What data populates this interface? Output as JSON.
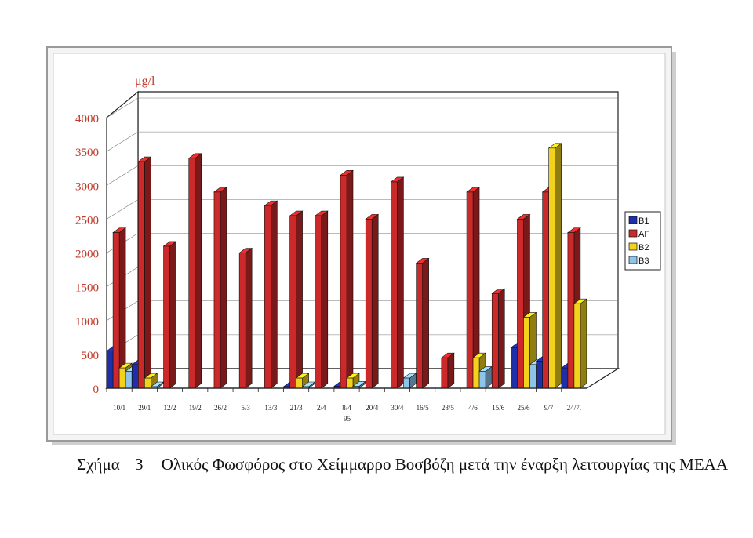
{
  "chart_data": {
    "type": "bar",
    "unit_label": "μg/l",
    "ylim": [
      0,
      4000
    ],
    "y_ticks": [
      "0",
      "500",
      "1000",
      "1500",
      "2000",
      "2500",
      "3000",
      "3500",
      "4000"
    ],
    "categories": [
      "10/1",
      "29/1",
      "12/2",
      "19/2",
      "26/2",
      "5/3",
      "13/3",
      "21/3",
      "2/4",
      "8/4",
      "20/4",
      "30/4",
      "16/5",
      "28/5",
      "4/6",
      "15/6",
      "25/6",
      "9/7",
      "24/7."
    ],
    "year_label": "95",
    "grid": true,
    "legend_position": "right",
    "series": [
      {
        "name": "B1",
        "color": "#1f2fa8",
        "values": [
          550,
          350,
          null,
          null,
          null,
          null,
          null,
          20,
          null,
          30,
          null,
          null,
          null,
          null,
          null,
          null,
          600,
          400,
          300
        ]
      },
      {
        "name": "ΑΓ",
        "color": "#cc2a2a",
        "values": [
          2300,
          3350,
          2100,
          3400,
          2900,
          2000,
          2700,
          2550,
          2550,
          3150,
          2500,
          3050,
          1850,
          450,
          2900,
          1400,
          2500,
          2900,
          2300
        ]
      },
      {
        "name": "B2",
        "color": "#f2d21a",
        "values": [
          300,
          150,
          null,
          null,
          null,
          null,
          null,
          150,
          null,
          150,
          null,
          null,
          null,
          null,
          450,
          null,
          1050,
          3550,
          1250
        ]
      },
      {
        "name": "B3",
        "color": "#8ec4ea",
        "values": [
          250,
          0,
          null,
          null,
          null,
          null,
          null,
          20,
          null,
          30,
          null,
          150,
          null,
          null,
          250,
          null,
          350,
          null,
          null
        ]
      }
    ]
  },
  "caption": {
    "label": "Σχήμα",
    "number": "3",
    "text": "Ολικός Φωσφόρος στο Χείμμαρρο Βοσβόζη μετά την έναρξη λειτουργίας της ΜΕΑΑ"
  }
}
